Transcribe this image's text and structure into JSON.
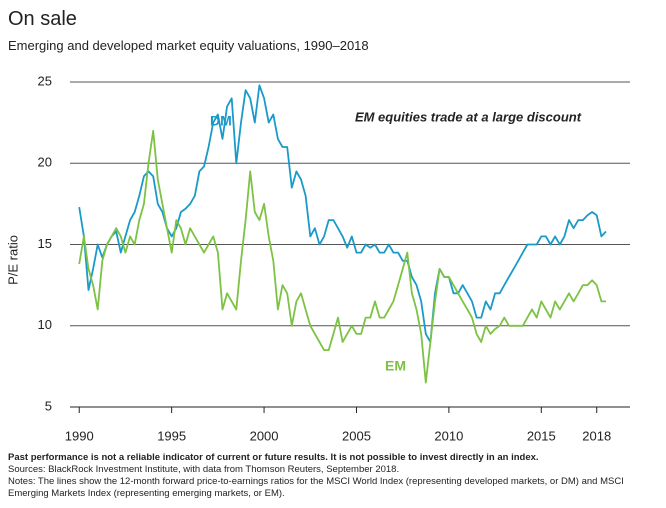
{
  "chart_data": {
    "type": "line",
    "title": "On sale",
    "subtitle": "Emerging and developed market equity valuations, 1990–2018",
    "y_label": "P/E ratio",
    "annotations": [
      "DM",
      "EM",
      "EM equities trade at a large discount"
    ],
    "x": [
      1990,
      1990.25,
      1990.5,
      1990.75,
      1991,
      1991.25,
      1991.5,
      1991.75,
      1992,
      1992.25,
      1992.5,
      1992.75,
      1993,
      1993.25,
      1993.5,
      1993.75,
      1994,
      1994.25,
      1994.5,
      1994.75,
      1995,
      1995.25,
      1995.5,
      1995.75,
      1996,
      1996.25,
      1996.5,
      1996.75,
      1997,
      1997.25,
      1997.5,
      1997.75,
      1998,
      1998.25,
      1998.5,
      1998.75,
      1999,
      1999.25,
      1999.5,
      1999.75,
      2000,
      2000.25,
      2000.5,
      2000.75,
      2001,
      2001.25,
      2001.5,
      2001.75,
      2002,
      2002.25,
      2002.5,
      2002.75,
      2003,
      2003.25,
      2003.5,
      2003.75,
      2004,
      2004.25,
      2004.5,
      2004.75,
      2005,
      2005.25,
      2005.5,
      2005.75,
      2006,
      2006.25,
      2006.5,
      2006.75,
      2007,
      2007.25,
      2007.5,
      2007.75,
      2008,
      2008.25,
      2008.5,
      2008.75,
      2009,
      2009.25,
      2009.5,
      2009.75,
      2010,
      2010.25,
      2010.5,
      2010.75,
      2011,
      2011.25,
      2011.5,
      2011.75,
      2012,
      2012.25,
      2012.5,
      2012.75,
      2013,
      2013.25,
      2013.5,
      2013.75,
      2014,
      2014.25,
      2014.5,
      2014.75,
      2015,
      2015.25,
      2015.5,
      2015.75,
      2016,
      2016.25,
      2016.5,
      2016.75,
      2017,
      2017.25,
      2017.5,
      2017.75,
      2018,
      2018.25,
      2018.5
    ],
    "series": [
      {
        "name": "DM",
        "color": "#1a9ac9",
        "values": [
          17.3,
          15.5,
          12.2,
          13.5,
          15.0,
          14.2,
          15.0,
          15.5,
          15.8,
          14.5,
          15.5,
          16.5,
          17.0,
          18.0,
          19.2,
          19.5,
          19.2,
          17.5,
          17.0,
          16.0,
          15.5,
          16.0,
          17.0,
          17.2,
          17.5,
          18.0,
          19.5,
          19.8,
          21.0,
          22.5,
          23.0,
          21.5,
          23.5,
          24.0,
          20.0,
          22.5,
          24.5,
          24.0,
          22.5,
          24.8,
          24.0,
          22.5,
          23.0,
          21.5,
          21.0,
          21.0,
          18.5,
          19.5,
          19.0,
          18.0,
          15.5,
          16.0,
          15.0,
          15.5,
          16.5,
          16.5,
          16.0,
          15.5,
          14.8,
          15.5,
          14.5,
          14.5,
          15.0,
          14.8,
          15.0,
          14.5,
          14.5,
          15.0,
          14.5,
          14.5,
          14.0,
          14.0,
          13.0,
          12.5,
          11.5,
          9.5,
          9.0,
          12.0,
          13.5,
          13.0,
          13.0,
          12.0,
          12.0,
          12.5,
          12.0,
          11.5,
          10.5,
          10.5,
          11.5,
          11.0,
          12.0,
          12.0,
          12.5,
          13.0,
          13.5,
          14.0,
          14.5,
          15.0,
          15.0,
          15.0,
          15.5,
          15.5,
          15.0,
          15.5,
          15.0,
          15.5,
          16.5,
          16.0,
          16.5,
          16.5,
          16.8,
          17.0,
          16.8,
          15.5,
          15.8
        ]
      },
      {
        "name": "EM",
        "color": "#7dc243",
        "values": [
          13.8,
          15.5,
          13.5,
          12.5,
          11.0,
          14.0,
          15.0,
          15.5,
          16.0,
          15.5,
          14.5,
          15.5,
          15.0,
          16.5,
          17.5,
          20.0,
          22.0,
          19.0,
          17.5,
          16.0,
          14.5,
          16.5,
          16.0,
          15.0,
          16.0,
          15.5,
          15.0,
          14.5,
          15.0,
          15.5,
          14.5,
          11.0,
          12.0,
          11.5,
          11.0,
          14.0,
          16.5,
          19.5,
          17.0,
          16.5,
          17.5,
          15.5,
          14.0,
          11.0,
          12.5,
          12.0,
          10.0,
          11.5,
          12.0,
          11.0,
          10.0,
          9.5,
          9.0,
          8.5,
          8.5,
          9.5,
          10.5,
          9.0,
          9.5,
          10.0,
          9.5,
          9.5,
          10.5,
          10.5,
          11.5,
          10.5,
          10.5,
          11.0,
          11.5,
          12.5,
          13.5,
          14.5,
          12.0,
          11.0,
          9.5,
          6.5,
          9.0,
          11.5,
          13.5,
          13.0,
          13.0,
          12.5,
          12.0,
          11.5,
          11.0,
          10.5,
          9.5,
          9.0,
          10.0,
          9.5,
          9.8,
          10.0,
          10.5,
          10.0,
          10.0,
          10.0,
          10.0,
          10.5,
          11.0,
          10.5,
          11.5,
          11.0,
          10.5,
          11.5,
          11.0,
          11.5,
          12.0,
          11.5,
          12.0,
          12.5,
          12.5,
          12.8,
          12.5,
          11.5,
          11.5
        ]
      }
    ],
    "xlim": [
      1989.5,
      2019.8
    ],
    "xticks": [
      1990,
      1995,
      2000,
      2005,
      2010,
      2015,
      2018
    ],
    "ylim": [
      5,
      25
    ],
    "yticks": [
      5,
      10,
      15,
      20,
      25
    ],
    "grid": true,
    "footnotes": [
      "Past performance is not a reliable indicator of current or future results. It is not possible to invest directly in an index.",
      "Sources: BlackRock Investment Institute, with data from Thomson Reuters, September 2018.",
      "Notes: The lines show the 12-month forward price-to-earnings ratios for the MSCI World Index (representing developed markets, or DM) and MSCI Emerging Markets Index (representing emerging markets, or EM)."
    ]
  }
}
